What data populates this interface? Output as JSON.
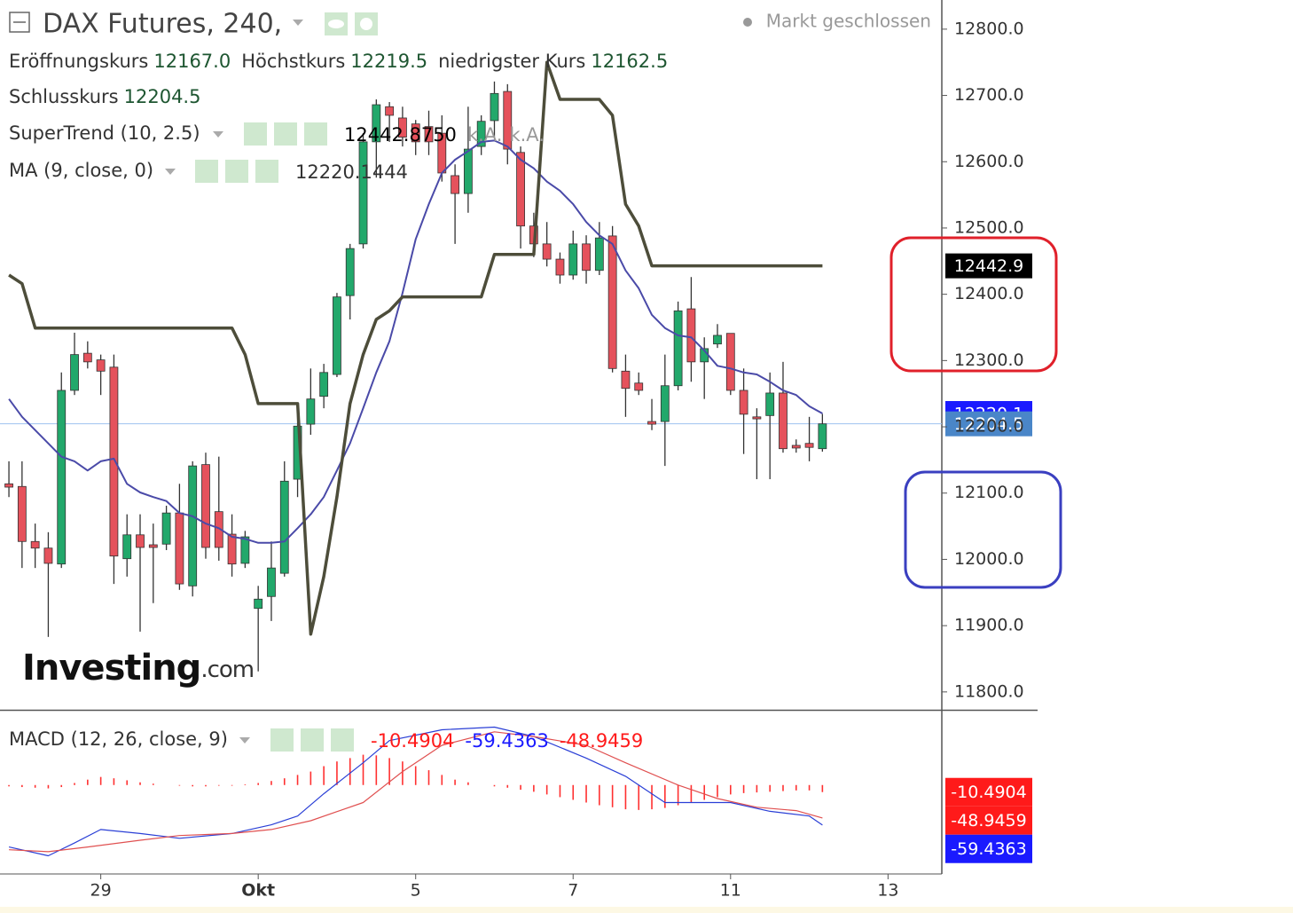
{
  "chart_data": [
    {
      "type": "candlestick",
      "title": "DAX Futures, 240,",
      "status": "Markt geschlossen",
      "watermark": [
        "Investing",
        ".com"
      ],
      "ohlc": [
        {
          "name": "Eröffnungskurs",
          "value": 12167,
          "label": "12167.0"
        },
        {
          "name": "Höchstkurs",
          "value": 12219.5,
          "label": "12219.5"
        },
        {
          "name": "niedrigster Kurs",
          "value": 12162.5,
          "label": "12162.5"
        },
        {
          "name": "Schlusskurs",
          "value": 12204.5,
          "label": "12204.5"
        }
      ],
      "up_color": "#22a86b",
      "down_color": "#e5525c",
      "close_tag_color": "#4a86c8",
      "x": [
        1,
        2,
        3,
        4,
        5,
        6,
        7,
        8,
        9,
        10,
        11,
        12,
        13,
        14,
        15,
        16,
        17,
        18,
        19,
        20,
        21,
        22,
        23,
        24,
        25,
        26,
        27,
        28,
        29,
        30,
        31,
        32,
        33,
        34,
        35,
        36,
        37,
        38,
        39,
        40,
        41,
        42,
        43,
        44,
        45,
        46,
        47,
        48,
        49,
        50,
        51,
        52,
        53,
        54,
        55,
        56,
        57,
        58,
        59,
        60,
        61,
        62,
        63
      ],
      "open": [
        12114,
        12110,
        12027,
        12017,
        11993,
        12255,
        12311,
        12301,
        12290,
        12001,
        12037,
        12022,
        12023,
        12070,
        11960,
        12143,
        12072,
        12038,
        11994,
        11926,
        11944,
        11979,
        12121,
        12204,
        12246,
        12279,
        12398,
        12476,
        12630,
        12683,
        12666,
        12657,
        12653,
        12643,
        12579,
        12552,
        12623,
        12662,
        12706,
        12614,
        12503,
        12476,
        12453,
        12429,
        12476,
        12436,
        12488,
        12284,
        12266,
        12208,
        12208,
        12262,
        12378,
        12298,
        12325,
        12341,
        12255,
        12215,
        12217,
        12251,
        12172,
        12175,
        12167
      ],
      "high": [
        12148,
        12148,
        12054,
        12041,
        12282,
        12342,
        12329,
        12309,
        12309,
        12068,
        12068,
        12054,
        12081,
        12114,
        12148,
        12161,
        12155,
        12068,
        12043,
        11960,
        12027,
        12148,
        12235,
        12288,
        12295,
        12402,
        12476,
        12643,
        12694,
        12690,
        12683,
        12663,
        12677,
        12670,
        12596,
        12683,
        12670,
        12721,
        12717,
        12623,
        12523,
        12509,
        12463,
        12496,
        12489,
        12509,
        12503,
        12309,
        12282,
        12242,
        12309,
        12389,
        12426,
        12335,
        12355,
        12341,
        12288,
        12228,
        12282,
        12298,
        12181,
        12215,
        12219.5
      ],
      "low": [
        12094,
        11987,
        11987,
        11883,
        11987,
        12248,
        12288,
        12248,
        11963,
        11974,
        11891,
        11934,
        12014,
        11954,
        11944,
        12001,
        11998,
        11974,
        11987,
        11831,
        11907,
        11974,
        12094,
        12188,
        12228,
        12275,
        12362,
        12469,
        12576,
        12630,
        12623,
        12610,
        12610,
        12570,
        12476,
        12523,
        12610,
        12637,
        12596,
        12469,
        12456,
        12442,
        12416,
        12422,
        12416,
        12429,
        12282,
        12215,
        12248,
        12195,
        12141,
        12255,
        12268,
        12242,
        12319,
        12248,
        12159,
        12121,
        12121,
        12161,
        12161,
        12148,
        12162.5
      ],
      "close": [
        12109,
        12027,
        12017,
        11994,
        12255,
        12309,
        12298,
        12284,
        12005,
        12037,
        12018,
        12018,
        12070,
        11963,
        12141,
        12018,
        12018,
        11993,
        12034,
        11940,
        11987,
        12118,
        12201,
        12242,
        12282,
        12396,
        12469,
        12630,
        12686,
        12670,
        12637,
        12630,
        12630,
        12583,
        12552,
        12619,
        12661,
        12703,
        12619,
        12503,
        12476,
        12453,
        12429,
        12476,
        12436,
        12485,
        12288,
        12258,
        12255,
        12204,
        12262,
        12375,
        12298,
        12318,
        12338,
        12255,
        12219,
        12212,
        12251,
        12167,
        12168,
        12169,
        12204.5
      ],
      "series": [
        {
          "name": "SuperTrend (10, 2.5)",
          "color": "#4d4d3a",
          "tag_color": "#000000",
          "legend_values": [
            "12442.8750",
            "k.A.",
            "k.A."
          ],
          "last_label": "12442.9",
          "values": [
            12429,
            12416,
            12349,
            12349,
            12349,
            12349,
            12349,
            12349,
            12349,
            12349,
            12349,
            12349,
            12349,
            12349,
            12349,
            12349,
            12349,
            12349,
            12309,
            12235,
            12235,
            12235,
            12235,
            11887,
            11974,
            12094,
            12235,
            12309,
            12362,
            12375,
            12396,
            12396,
            12396,
            12396,
            12396,
            12396,
            12396,
            12460,
            12460,
            12460,
            12460,
            12750,
            12694,
            12694,
            12694,
            12694,
            12670,
            12536,
            12503,
            12442.875,
            12442.875,
            12442.875,
            12442.875,
            12442.875,
            12442.875,
            12442.875,
            12442.875,
            12442.875,
            12442.875,
            12442.875,
            12442.875,
            12442.875,
            12442.875
          ]
        },
        {
          "name": "MA (9, close, 0)",
          "color": "#4a4aa8",
          "tag_color": "#1a1aff",
          "legend_values": [
            "12220.1444"
          ],
          "last_label": "12220.1",
          "values": [
            12242,
            12215,
            12195,
            12175,
            12155,
            12148,
            12134,
            12148,
            12152,
            12114,
            12101,
            12094,
            12088,
            12070,
            12065,
            12054,
            12047,
            12034,
            12031,
            12025,
            12025,
            12027,
            12047,
            12068,
            12094,
            12134,
            12175,
            12228,
            12282,
            12329,
            12402,
            12483,
            12536,
            12583,
            12603,
            12616,
            12630,
            12632,
            12623,
            12603,
            12590,
            12570,
            12556,
            12536,
            12509,
            12489,
            12476,
            12436,
            12409,
            12369,
            12349,
            12338,
            12335,
            12315,
            12292,
            12288,
            12282,
            12279,
            12268,
            12255,
            12248,
            12231,
            12220.1444
          ]
        }
      ],
      "xlim": [
        0.32,
        72.1
      ],
      "ylim": [
        11773,
        12844
      ],
      "xticks": [
        {
          "value": 8,
          "label": "29"
        },
        {
          "value": 20,
          "label": "Okt"
        },
        {
          "value": 32,
          "label": "5"
        },
        {
          "value": 44,
          "label": "7"
        },
        {
          "value": 56,
          "label": "11"
        },
        {
          "value": 68,
          "label": "13"
        }
      ],
      "yticks": [
        {
          "value": 11800,
          "label": "11800.0"
        },
        {
          "value": 11900,
          "label": "11900.0"
        },
        {
          "value": 12000,
          "label": "12000.0"
        },
        {
          "value": 12100,
          "label": "12100.0"
        },
        {
          "value": 12200,
          "label": "12200.0"
        },
        {
          "value": 12300,
          "label": "12300.0"
        },
        {
          "value": 12400,
          "label": "12400.0"
        },
        {
          "value": 12500,
          "label": "12500.0"
        },
        {
          "value": 12600,
          "label": "12600.0"
        },
        {
          "value": 12700,
          "label": "12700.0"
        },
        {
          "value": 12800,
          "label": "12800.0"
        }
      ]
    },
    {
      "type": "macd",
      "title": "MACD (12, 26, close, 9)",
      "xlim": [
        0.32,
        72.1
      ],
      "ylim": [
        -132,
        109
      ],
      "series": [
        {
          "kind": "histogram",
          "color": "#ff3030",
          "tag_color": "#ff1a1a",
          "last_label": "-10.4904",
          "x": [
            1,
            2,
            3,
            4,
            5,
            6,
            7,
            8,
            9,
            10,
            11,
            12,
            13,
            14,
            15,
            16,
            17,
            18,
            19,
            20,
            21,
            22,
            23,
            24,
            25,
            26,
            27,
            28,
            29,
            30,
            31,
            32,
            33,
            34,
            35,
            36,
            37,
            38,
            39,
            40,
            41,
            42,
            43,
            44,
            45,
            46,
            47,
            48,
            49,
            50,
            51,
            52,
            53,
            54,
            55,
            56,
            57,
            58,
            59,
            60,
            61,
            62,
            63
          ],
          "values": [
            -2,
            -3,
            -4,
            -5,
            -3,
            3,
            8,
            12,
            10,
            7,
            4,
            2,
            0,
            -1,
            -2,
            -2,
            -1,
            -1,
            1,
            3,
            6,
            10,
            15,
            20,
            28,
            35,
            40,
            45,
            44,
            40,
            35,
            28,
            22,
            15,
            8,
            4,
            0,
            -2,
            -4,
            -7,
            -10,
            -14,
            -18,
            -22,
            -26,
            -30,
            -33,
            -36,
            -37,
            -36,
            -34,
            -30,
            -26,
            -22,
            -18,
            -14,
            -12,
            -11,
            -10,
            -9,
            -8,
            -8,
            -10.4904
          ]
        },
        {
          "kind": "line",
          "color": "#2a3fd6",
          "tag_color": "#1a1aff",
          "last_label": "-59.4363",
          "x": [
            1,
            4,
            6,
            8,
            11,
            14,
            18,
            21,
            23,
            25,
            28,
            30,
            34,
            38,
            41,
            45,
            48,
            51,
            54,
            56,
            59,
            62,
            63
          ],
          "values": [
            -92,
            -105,
            -86,
            -66,
            -72,
            -79,
            -72,
            -59,
            -46,
            -13,
            33,
            66,
            82,
            86,
            72,
            40,
            13,
            -26,
            -26,
            -26,
            -39,
            -46,
            -59.4363
          ]
        },
        {
          "kind": "line",
          "color": "#e05050",
          "tag_color": "#ff1a1a",
          "last_label": "-48.9459",
          "x": [
            1,
            4,
            7,
            11,
            14,
            18,
            21,
            24,
            28,
            31,
            34,
            38,
            41,
            45,
            48,
            52,
            55,
            58,
            61,
            63
          ],
          "values": [
            -96,
            -99,
            -92,
            -82,
            -75,
            -72,
            -66,
            -53,
            -26,
            20,
            59,
            79,
            72,
            59,
            33,
            0,
            -20,
            -33,
            -38,
            -48.9459
          ]
        }
      ]
    }
  ]
}
